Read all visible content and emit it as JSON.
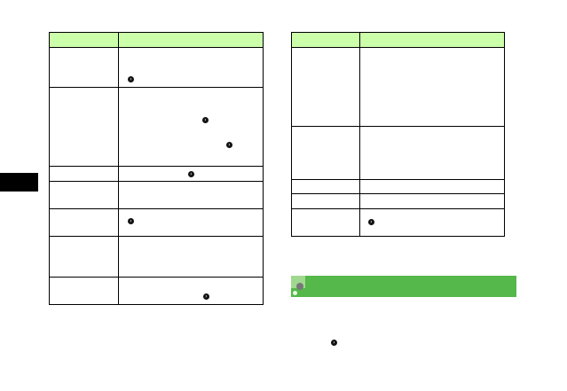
{
  "colors": {
    "table_header": "#ccffaa",
    "section_bar": "#55b84a",
    "side_tab": "#000000"
  },
  "icons": {
    "reference": "arrow-circle-right-icon",
    "section": "note-icon"
  },
  "left_table": {
    "rows": 7
  },
  "right_table": {
    "rows": 5
  }
}
